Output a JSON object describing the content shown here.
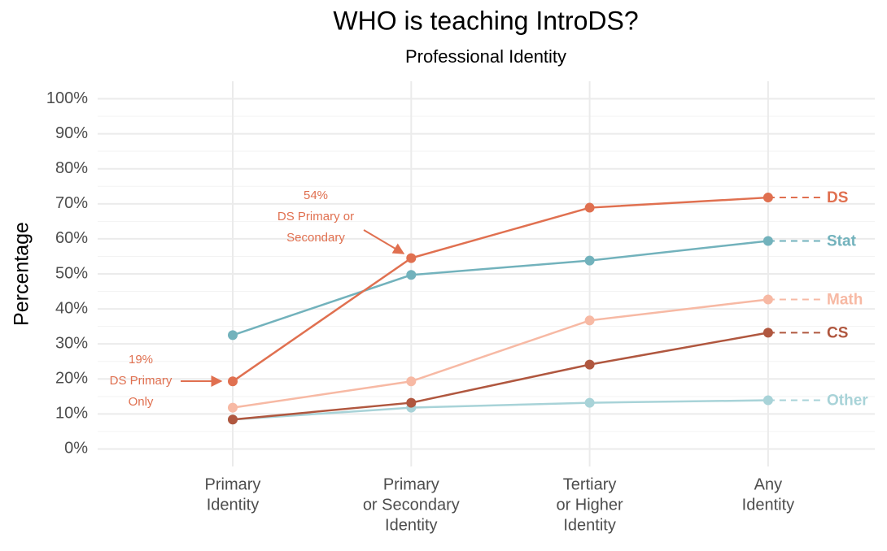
{
  "chart_data": {
    "type": "line",
    "title": "WHO is teaching IntroDS?",
    "subtitle": "Professional Identity",
    "y_label": "Percentage",
    "categories": [
      [
        "Primary",
        "Identity"
      ],
      [
        "Primary",
        "or Secondary",
        "Identity"
      ],
      [
        "Tertiary",
        "or Higher",
        "Identity"
      ],
      [
        "Any",
        "Identity"
      ]
    ],
    "series": [
      {
        "name": "DS",
        "color": "#e07050",
        "values": [
          19.3,
          54.5,
          68.9,
          71.8
        ]
      },
      {
        "name": "Stat",
        "color": "#72b2bc",
        "values": [
          32.5,
          49.7,
          53.8,
          59.4
        ]
      },
      {
        "name": "Math",
        "color": "#f7b9a4",
        "values": [
          11.8,
          19.3,
          36.7,
          42.7
        ]
      },
      {
        "name": "CS",
        "color": "#b0573f",
        "values": [
          8.4,
          13.2,
          24.1,
          33.2
        ]
      },
      {
        "name": "Other",
        "color": "#a8d3d8",
        "values": [
          8.4,
          11.8,
          13.2,
          13.9
        ]
      }
    ],
    "annotations": [
      {
        "lines": [
          "19%",
          "DS Primary",
          "Only"
        ]
      },
      {
        "lines": [
          "54%",
          "DS Primary or",
          "Secondary"
        ]
      }
    ],
    "ylim": [
      -5,
      105
    ],
    "yticks": [
      {
        "value": 0,
        "label": "0%"
      },
      {
        "value": 10,
        "label": "10%"
      },
      {
        "value": 20,
        "label": "20%"
      },
      {
        "value": 30,
        "label": "30%"
      },
      {
        "value": 40,
        "label": "40%"
      },
      {
        "value": 50,
        "label": "50%"
      },
      {
        "value": 60,
        "label": "60%"
      },
      {
        "value": 70,
        "label": "70%"
      },
      {
        "value": 80,
        "label": "80%"
      },
      {
        "value": 90,
        "label": "90%"
      },
      {
        "value": 100,
        "label": "100%"
      }
    ],
    "grid": true
  }
}
